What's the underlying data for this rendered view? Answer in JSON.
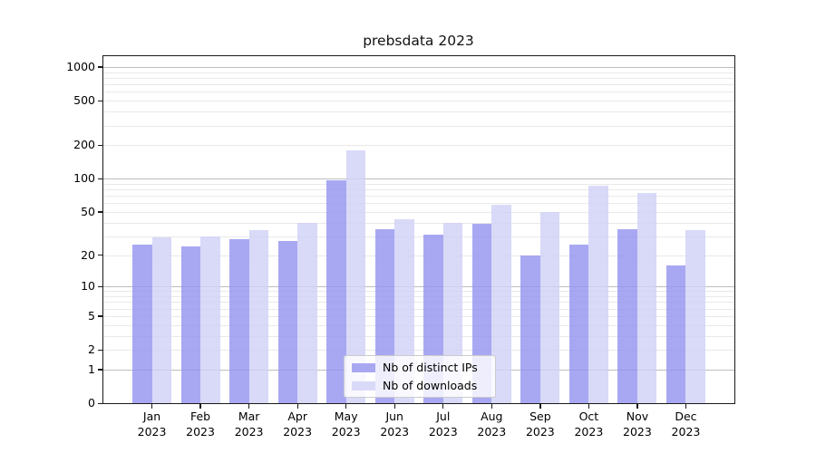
{
  "chart_data": {
    "type": "bar",
    "title": "prebsdata 2023",
    "categories": [
      "Jan 2023",
      "Feb 2023",
      "Mar 2023",
      "Apr 2023",
      "May 2023",
      "Jun 2023",
      "Jul 2023",
      "Aug 2023",
      "Sep 2023",
      "Oct 2023",
      "Nov 2023",
      "Dec 2023"
    ],
    "series": [
      {
        "name": "Nb of distinct IPs",
        "color": "#a8a8f2",
        "color_rgba": "rgba(149,149,239,1)",
        "values": [
          25,
          24,
          28,
          27,
          97,
          35,
          31,
          39,
          20,
          25,
          35,
          16
        ]
      },
      {
        "name": "Nb of downloads",
        "color": "#d9d9f8",
        "color_rgba": "rgba(209,209,247,1)",
        "values": [
          29,
          30,
          34,
          40,
          180,
          43,
          40,
          58,
          50,
          86,
          74,
          34
        ]
      }
    ],
    "y_axis": {
      "scale": "log1p",
      "ticks": [
        0,
        1,
        2,
        5,
        10,
        20,
        50,
        100,
        200,
        500,
        1000
      ],
      "limits": [
        0,
        1000
      ],
      "major_gridlines": [
        1,
        10,
        100,
        1000
      ]
    },
    "x_axis": {
      "tick_label_format": "month newline year"
    },
    "grid": true,
    "legend": {
      "position": "lower center"
    },
    "colors": {
      "bar_distinct_ips": "#a8a8f2",
      "bar_downloads": "#d9d9f8",
      "major_grid": "#bdbdbd",
      "minor_grid": "#e9e9e9",
      "spine": "#1a1a1a"
    }
  }
}
